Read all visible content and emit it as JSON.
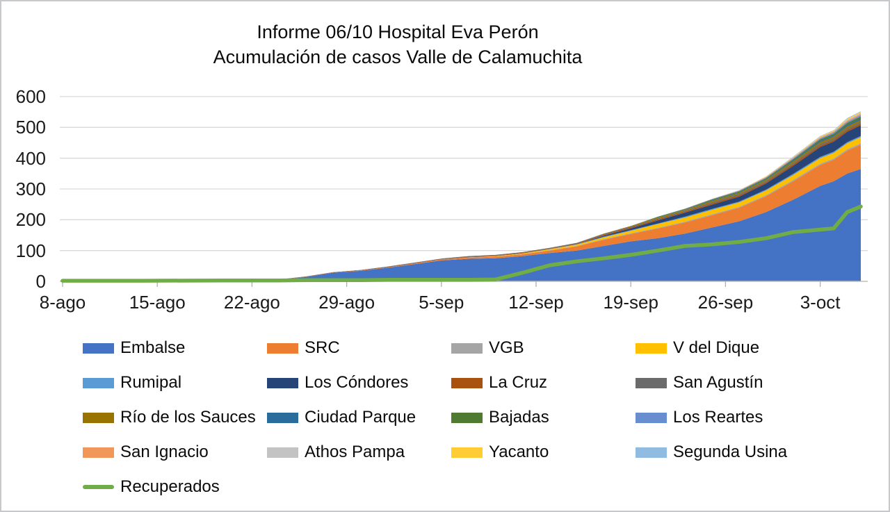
{
  "title": {
    "line1": "Informe 06/10 Hospital Eva Perón",
    "line2": "Acumulación de casos Valle de Calamuchita"
  },
  "chart_data": {
    "type": "area",
    "stacked": true,
    "title": "Informe 06/10 Hospital Eva Perón — Acumulación de casos Valle de Calamuchita",
    "grid": "horizontal",
    "legend_position": "bottom",
    "ylim": [
      0,
      600
    ],
    "y_ticks": [
      0,
      100,
      200,
      300,
      400,
      500,
      600
    ],
    "x_tick_days": [
      0,
      7,
      14,
      21,
      28,
      35,
      42,
      49,
      56
    ],
    "x_tick_labels": [
      "8-ago",
      "15-ago",
      "22-ago",
      "29-ago",
      "5-sep",
      "12-sep",
      "19-sep",
      "26-sep",
      "3-oct"
    ],
    "days": [
      0,
      6,
      12,
      16,
      18,
      20,
      22,
      24,
      26,
      28,
      30,
      32,
      34,
      36,
      38,
      40,
      42,
      44,
      46,
      48,
      50,
      52,
      54,
      56,
      57,
      58,
      59
    ],
    "series": [
      {
        "name": "Embalse",
        "color": "#4472C4",
        "values": [
          1,
          1,
          2,
          4,
          14,
          28,
          34,
          44,
          56,
          68,
          73,
          75,
          82,
          92,
          100,
          115,
          130,
          140,
          155,
          175,
          195,
          225,
          265,
          310,
          325,
          350,
          365
        ]
      },
      {
        "name": "SRC",
        "color": "#ED7D31",
        "values": [
          0,
          0,
          0,
          0,
          0,
          0,
          1,
          1,
          2,
          3,
          4,
          5,
          6,
          8,
          14,
          20,
          24,
          32,
          36,
          40,
          44,
          52,
          60,
          68,
          70,
          75,
          79
        ]
      },
      {
        "name": "VGB",
        "color": "#A5A5A5",
        "values": [
          0,
          0,
          0,
          0,
          0,
          0,
          0,
          0,
          0,
          0,
          1,
          1,
          1,
          1,
          1,
          2,
          2,
          2,
          3,
          3,
          3,
          3,
          4,
          4,
          4,
          4,
          4
        ]
      },
      {
        "name": "V del Dique",
        "color": "#FFC000",
        "values": [
          0,
          0,
          0,
          0,
          0,
          0,
          0,
          0,
          0,
          0,
          0,
          1,
          2,
          3,
          4,
          6,
          8,
          12,
          13,
          14,
          14,
          15,
          16,
          18,
          18,
          19,
          20
        ]
      },
      {
        "name": "Rumipal",
        "color": "#5B9BD5",
        "values": [
          0,
          0,
          0,
          0,
          0,
          0,
          0,
          0,
          0,
          0,
          0,
          0,
          0,
          1,
          1,
          2,
          2,
          2,
          3,
          3,
          3,
          3,
          4,
          4,
          4,
          4,
          4
        ]
      },
      {
        "name": "Los Cóndores",
        "color": "#264478",
        "values": [
          0,
          0,
          0,
          0,
          0,
          0,
          0,
          0,
          0,
          0,
          0,
          0,
          0,
          0,
          0,
          3,
          6,
          10,
          13,
          14,
          16,
          20,
          26,
          32,
          33,
          34,
          35
        ]
      },
      {
        "name": "La Cruz",
        "color": "#A9510E",
        "values": [
          1,
          1,
          1,
          1,
          1,
          1,
          1,
          1,
          1,
          1,
          2,
          2,
          2,
          2,
          2,
          3,
          3,
          3,
          3,
          4,
          4,
          4,
          5,
          5,
          5,
          6,
          6
        ]
      },
      {
        "name": "San Agustín",
        "color": "#6B6B6B",
        "values": [
          1,
          1,
          1,
          1,
          1,
          1,
          1,
          2,
          2,
          2,
          2,
          2,
          2,
          2,
          3,
          3,
          3,
          3,
          3,
          4,
          4,
          4,
          4,
          5,
          5,
          5,
          5
        ]
      },
      {
        "name": "Río de los Sauces",
        "color": "#997300",
        "values": [
          0,
          0,
          0,
          0,
          0,
          0,
          0,
          0,
          0,
          0,
          0,
          0,
          0,
          0,
          0,
          1,
          2,
          3,
          3,
          4,
          4,
          4,
          5,
          6,
          6,
          6,
          6
        ]
      },
      {
        "name": "Ciudad Parque",
        "color": "#2A6C9C",
        "values": [
          0,
          0,
          0,
          0,
          0,
          0,
          0,
          0,
          0,
          0,
          0,
          0,
          0,
          0,
          0,
          0,
          0,
          1,
          1,
          2,
          2,
          2,
          3,
          4,
          4,
          5,
          5
        ]
      },
      {
        "name": "Bajadas",
        "color": "#4E7A32",
        "values": [
          0,
          0,
          0,
          0,
          0,
          0,
          0,
          0,
          0,
          0,
          0,
          0,
          0,
          0,
          0,
          0,
          0,
          2,
          2,
          3,
          3,
          3,
          4,
          5,
          5,
          6,
          6
        ]
      },
      {
        "name": "Los Reartes",
        "color": "#698ED0",
        "values": [
          0,
          0,
          0,
          0,
          0,
          0,
          0,
          0,
          0,
          0,
          0,
          0,
          0,
          0,
          0,
          0,
          0,
          0,
          1,
          1,
          2,
          2,
          3,
          3,
          4,
          4,
          5
        ]
      },
      {
        "name": "San Ignacio",
        "color": "#F1975A",
        "values": [
          0,
          0,
          0,
          0,
          0,
          0,
          0,
          0,
          0,
          0,
          0,
          0,
          0,
          0,
          0,
          0,
          0,
          0,
          0,
          1,
          1,
          2,
          2,
          3,
          3,
          4,
          4
        ]
      },
      {
        "name": "Athos Pampa",
        "color": "#C3C3C3",
        "values": [
          0,
          0,
          0,
          0,
          0,
          0,
          0,
          0,
          0,
          0,
          0,
          0,
          0,
          0,
          0,
          0,
          0,
          0,
          0,
          0,
          1,
          1,
          2,
          2,
          2,
          3,
          3
        ]
      },
      {
        "name": "Yacanto",
        "color": "#FFCD33",
        "values": [
          0,
          0,
          0,
          0,
          0,
          0,
          0,
          0,
          0,
          0,
          0,
          0,
          0,
          0,
          0,
          0,
          0,
          0,
          0,
          0,
          0,
          1,
          1,
          2,
          2,
          3,
          3
        ]
      },
      {
        "name": "Segunda Usina",
        "color": "#8FBCE0",
        "values": [
          0,
          0,
          0,
          0,
          0,
          0,
          0,
          0,
          0,
          0,
          0,
          0,
          0,
          0,
          0,
          0,
          0,
          0,
          0,
          0,
          0,
          0,
          1,
          1,
          1,
          2,
          2
        ]
      }
    ],
    "line_series": {
      "name": "Recuperados",
      "color": "#70AD47",
      "values": [
        2,
        2,
        3,
        3,
        4,
        4,
        4,
        5,
        5,
        5,
        5,
        6,
        28,
        52,
        65,
        75,
        86,
        100,
        115,
        120,
        128,
        140,
        160,
        168,
        172,
        225,
        243
      ]
    },
    "colors": {
      "gridline": "#D9D9D9",
      "axis_line": "#BFBFBF",
      "tick_mark": "#AFAFAF"
    }
  }
}
